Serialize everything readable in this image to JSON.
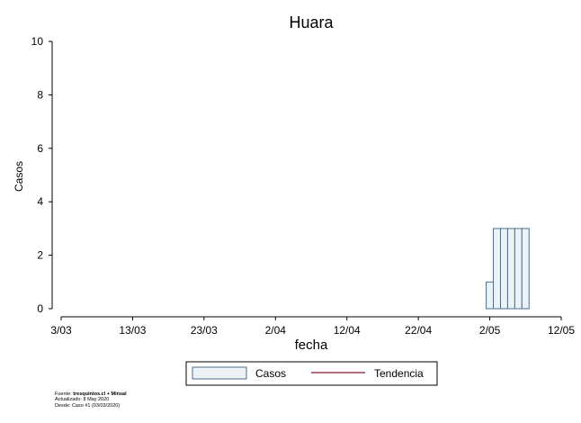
{
  "chart_data": {
    "type": "bar",
    "title": "Huara",
    "xlabel": "fecha",
    "ylabel": "Casos",
    "x_range_days_from_2020_03_03": [
      0,
      70
    ],
    "x_start_date": "2020-03-03",
    "x_ticks": [
      "3/03",
      "13/03",
      "23/03",
      "2/04",
      "12/04",
      "22/04",
      "2/05",
      "12/05"
    ],
    "ylim": [
      0,
      10
    ],
    "y_ticks": [
      0,
      2,
      4,
      6,
      8,
      10
    ],
    "grid": false,
    "bars": [
      {
        "date": "2020-05-02",
        "value": 1
      },
      {
        "date": "2020-05-03",
        "value": 3
      },
      {
        "date": "2020-05-04",
        "value": 3
      },
      {
        "date": "2020-05-05",
        "value": 3
      },
      {
        "date": "2020-05-06",
        "value": 3
      },
      {
        "date": "2020-05-07",
        "value": 3
      }
    ],
    "series": [
      {
        "name": "Casos",
        "style": "bar",
        "fill": "#eef2f4",
        "stroke": "#4e6e8e"
      },
      {
        "name": "Tendencia",
        "style": "line",
        "color": "#8b1a2b",
        "values": []
      }
    ],
    "legend_position": "bottom"
  },
  "footer": {
    "source_prefix": "Fuente: ",
    "source_bold": "tresquintos.cl + Minsal",
    "updated": "Actualizado: 8 May 2020",
    "since": "Desde: Caso #1  (03/03/2020)"
  }
}
